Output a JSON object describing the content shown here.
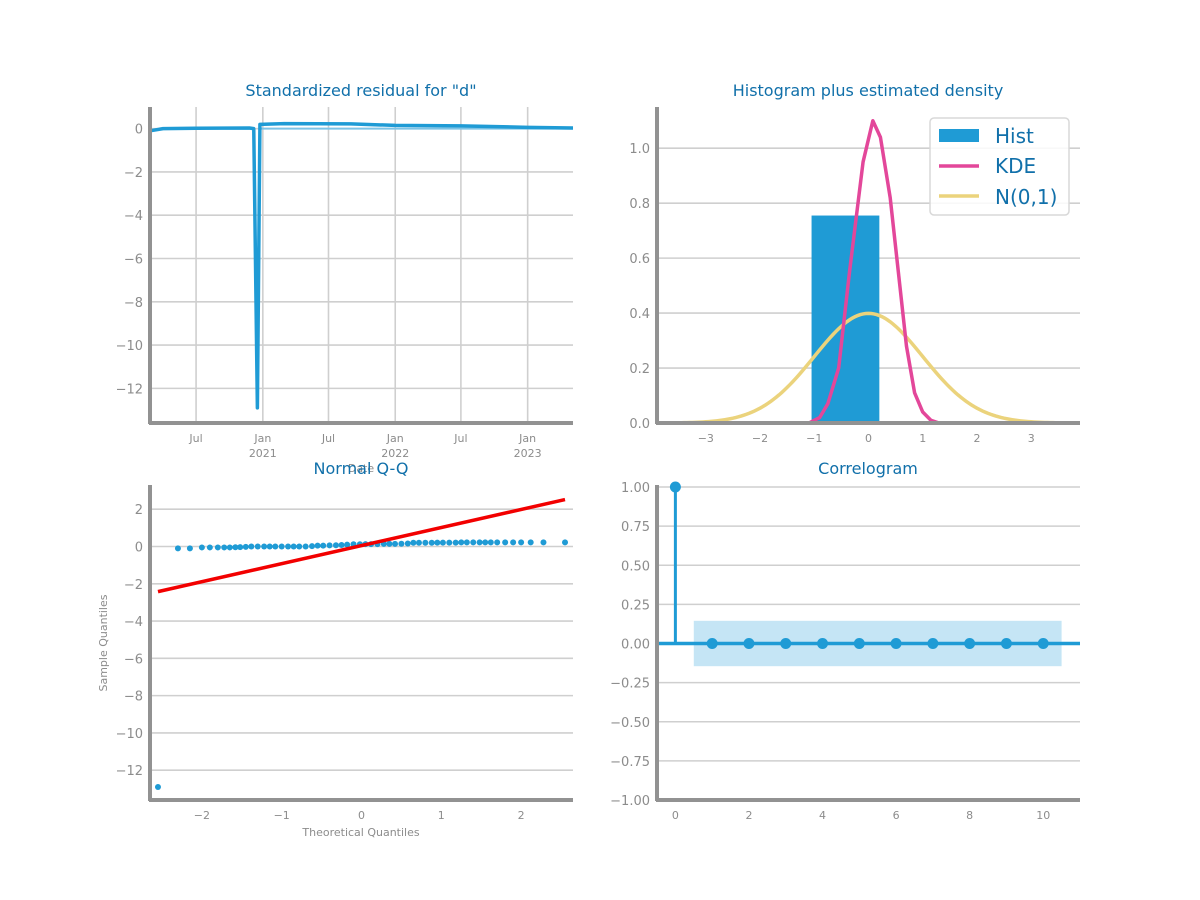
{
  "colors": {
    "blue": "#1f9bd5",
    "pink": "#e3479a",
    "sand": "#ebd37c",
    "red": "#f20000",
    "title": "#1170aa",
    "grid": "#cfcfcf",
    "axis": "#929292",
    "band": "#c2e4f4"
  },
  "chart_data": [
    {
      "type": "line",
      "title": "Standardized residual for \"d\"",
      "xlabel": "Date",
      "ylabel": "",
      "x_tick_labels": [
        {
          "x": "2020-07-01",
          "line1": "Jul",
          "line2": ""
        },
        {
          "x": "2021-01-01",
          "line1": "Jan",
          "line2": "2021"
        },
        {
          "x": "2021-07-01",
          "line1": "Jul",
          "line2": ""
        },
        {
          "x": "2022-01-01",
          "line1": "Jan",
          "line2": "2022"
        },
        {
          "x": "2022-07-01",
          "line1": "Jul",
          "line2": ""
        },
        {
          "x": "2023-01-01",
          "line1": "Jan",
          "line2": "2023"
        }
      ],
      "xlim": [
        "2020-02-25",
        "2023-05-06"
      ],
      "ylim": [
        -13.6,
        1.0
      ],
      "yticks": [
        0,
        -2,
        -4,
        -6,
        -8,
        -10,
        -12
      ],
      "series": [
        {
          "values": [
            {
              "x": "2020-02-25",
              "y": -0.1
            },
            {
              "x": "2020-04-01",
              "y": 0.0
            },
            {
              "x": "2020-07-01",
              "y": 0.02
            },
            {
              "x": "2020-11-25",
              "y": 0.03
            },
            {
              "x": "2020-12-07",
              "y": 0.0
            },
            {
              "x": "2020-12-17",
              "y": -12.9
            },
            {
              "x": "2020-12-24",
              "y": 0.2
            },
            {
              "x": "2021-03-01",
              "y": 0.23
            },
            {
              "x": "2021-09-01",
              "y": 0.22
            },
            {
              "x": "2022-01-01",
              "y": 0.15
            },
            {
              "x": "2022-07-01",
              "y": 0.13
            },
            {
              "x": "2023-01-01",
              "y": 0.06
            },
            {
              "x": "2023-05-06",
              "y": 0.03
            }
          ]
        },
        {
          "values": [
            {
              "x": "2020-12-24",
              "y": 0.0
            },
            {
              "x": "2023-05-06",
              "y": 0.0
            }
          ]
        }
      ]
    },
    {
      "type": "bar",
      "title": "Histogram plus estimated density",
      "xlim": [
        -3.9,
        3.9
      ],
      "ylim": [
        0,
        1.15
      ],
      "xticks": [
        -3,
        -2,
        -1,
        0,
        1,
        2,
        3
      ],
      "yticks": [
        0.0,
        0.2,
        0.4,
        0.6,
        0.8,
        1.0
      ],
      "bars": [
        {
          "x0": -1.05,
          "x1": 0.2,
          "value": 0.755
        }
      ],
      "series": [
        {
          "name": "KDE",
          "values": [
            {
              "x": -1.1,
              "y": 0.0
            },
            {
              "x": -0.9,
              "y": 0.02
            },
            {
              "x": -0.75,
              "y": 0.07
            },
            {
              "x": -0.55,
              "y": 0.2
            },
            {
              "x": -0.35,
              "y": 0.55
            },
            {
              "x": -0.1,
              "y": 0.95
            },
            {
              "x": 0.08,
              "y": 1.1
            },
            {
              "x": 0.22,
              "y": 1.04
            },
            {
              "x": 0.4,
              "y": 0.82
            },
            {
              "x": 0.55,
              "y": 0.55
            },
            {
              "x": 0.7,
              "y": 0.28
            },
            {
              "x": 0.85,
              "y": 0.11
            },
            {
              "x": 1.0,
              "y": 0.04
            },
            {
              "x": 1.15,
              "y": 0.01
            },
            {
              "x": 1.3,
              "y": 0.0
            }
          ]
        },
        {
          "name": "N(0,1)",
          "type": "normal-pdf",
          "range": [
            -3.9,
            3.9
          ]
        }
      ],
      "legend": {
        "position": "top-right",
        "entries": [
          "Hist",
          "KDE",
          "N(0,1)"
        ]
      }
    },
    {
      "type": "scatter",
      "title": "Normal Q-Q",
      "xlabel": "Theoretical Quantiles",
      "ylabel": "Sample Quantiles",
      "xlim": [
        -2.65,
        2.65
      ],
      "ylim": [
        -13.6,
        3.3
      ],
      "xticks": [
        -2,
        -1,
        0,
        1,
        2
      ],
      "yticks": [
        2,
        0,
        -2,
        -4,
        -6,
        -8,
        -10,
        -12
      ],
      "points": [
        {
          "x": -2.55,
          "y": -12.9
        },
        {
          "x": -2.3,
          "y": -0.1
        },
        {
          "x": -2.15,
          "y": -0.1
        },
        {
          "x": -2.0,
          "y": -0.05
        },
        {
          "x": -1.9,
          "y": -0.05
        },
        {
          "x": -1.8,
          "y": -0.05
        },
        {
          "x": -1.72,
          "y": -0.05
        },
        {
          "x": -1.65,
          "y": -0.05
        },
        {
          "x": -1.58,
          "y": -0.04
        },
        {
          "x": -1.52,
          "y": -0.03
        },
        {
          "x": -1.45,
          "y": -0.02
        },
        {
          "x": -1.38,
          "y": 0.0
        },
        {
          "x": -1.3,
          "y": 0.0
        },
        {
          "x": -1.22,
          "y": 0.0
        },
        {
          "x": -1.15,
          "y": 0.0
        },
        {
          "x": -1.08,
          "y": 0.0
        },
        {
          "x": -1.0,
          "y": 0.0
        },
        {
          "x": -0.92,
          "y": 0.0
        },
        {
          "x": -0.85,
          "y": 0.0
        },
        {
          "x": -0.78,
          "y": 0.0
        },
        {
          "x": -0.7,
          "y": 0.0
        },
        {
          "x": -0.62,
          "y": 0.02
        },
        {
          "x": -0.55,
          "y": 0.05
        },
        {
          "x": -0.48,
          "y": 0.05
        },
        {
          "x": -0.4,
          "y": 0.06
        },
        {
          "x": -0.32,
          "y": 0.07
        },
        {
          "x": -0.25,
          "y": 0.08
        },
        {
          "x": -0.18,
          "y": 0.1
        },
        {
          "x": -0.1,
          "y": 0.12
        },
        {
          "x": -0.02,
          "y": 0.12
        },
        {
          "x": 0.05,
          "y": 0.13
        },
        {
          "x": 0.12,
          "y": 0.13
        },
        {
          "x": 0.2,
          "y": 0.13
        },
        {
          "x": 0.28,
          "y": 0.14
        },
        {
          "x": 0.35,
          "y": 0.14
        },
        {
          "x": 0.42,
          "y": 0.14
        },
        {
          "x": 0.5,
          "y": 0.15
        },
        {
          "x": 0.58,
          "y": 0.16
        },
        {
          "x": 0.65,
          "y": 0.2
        },
        {
          "x": 0.72,
          "y": 0.2
        },
        {
          "x": 0.8,
          "y": 0.2
        },
        {
          "x": 0.88,
          "y": 0.2
        },
        {
          "x": 0.95,
          "y": 0.21
        },
        {
          "x": 1.02,
          "y": 0.21
        },
        {
          "x": 1.1,
          "y": 0.21
        },
        {
          "x": 1.18,
          "y": 0.21
        },
        {
          "x": 1.25,
          "y": 0.22
        },
        {
          "x": 1.32,
          "y": 0.22
        },
        {
          "x": 1.4,
          "y": 0.22
        },
        {
          "x": 1.48,
          "y": 0.22
        },
        {
          "x": 1.55,
          "y": 0.22
        },
        {
          "x": 1.62,
          "y": 0.22
        },
        {
          "x": 1.7,
          "y": 0.22
        },
        {
          "x": 1.8,
          "y": 0.22
        },
        {
          "x": 1.9,
          "y": 0.22
        },
        {
          "x": 2.0,
          "y": 0.22
        },
        {
          "x": 2.12,
          "y": 0.22
        },
        {
          "x": 2.28,
          "y": 0.22
        },
        {
          "x": 2.55,
          "y": 0.22
        }
      ],
      "reference_line": {
        "x": [
          -2.55,
          2.55
        ],
        "y": [
          -2.42,
          2.52
        ]
      }
    },
    {
      "type": "stem",
      "title": "Correlogram",
      "xlim": [
        -0.5,
        11.0
      ],
      "ylim": [
        -1.0,
        1.0
      ],
      "xticks": [
        0,
        2,
        4,
        6,
        8,
        10
      ],
      "yticks": [
        1.0,
        0.75,
        0.5,
        0.25,
        0.0,
        -0.25,
        -0.5,
        -0.75,
        -1.0
      ],
      "ytick_labels": [
        "1.00",
        "0.75",
        "0.50",
        "0.25",
        "0.00",
        "−0.25",
        "−0.50",
        "−0.75",
        "−1.00"
      ],
      "lags": [
        0,
        1,
        2,
        3,
        4,
        5,
        6,
        7,
        8,
        9,
        10
      ],
      "values": [
        1.0,
        0.0,
        0.0,
        0.0,
        0.0,
        0.0,
        0.0,
        0.0,
        0.0,
        0.0,
        0.0
      ],
      "confidence_band": {
        "x": [
          0.5,
          10.5
        ],
        "lower": -0.145,
        "upper": 0.145
      }
    }
  ]
}
